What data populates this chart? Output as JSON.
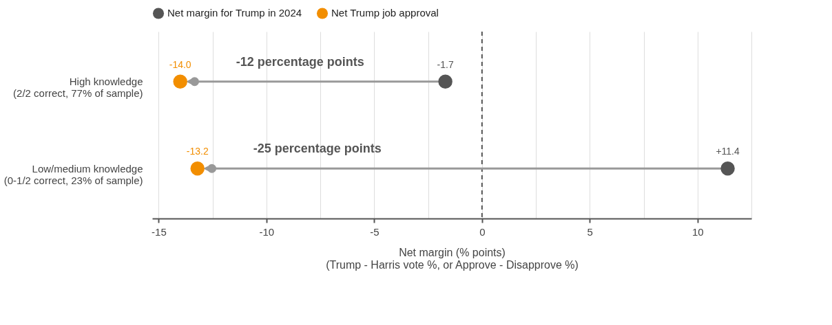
{
  "chart_data": {
    "type": "scatter",
    "categories": [
      "High knowledge\n(2/2 correct, 77% of sample)",
      "Low/medium knowledge\n(0-1/2 correct, 23% of sample)"
    ],
    "series": [
      {
        "name": "Net margin for Trump in 2024",
        "color": "#555555",
        "values": [
          -1.7,
          11.4
        ],
        "value_labels": [
          "-1.7",
          "+11.4"
        ]
      },
      {
        "name": "Net Trump job approval",
        "color": "#f28e00",
        "values": [
          -14.0,
          -13.2
        ],
        "value_labels": [
          "-14.0",
          "-13.2"
        ]
      }
    ],
    "xlabel": "Net margin (% points)\n(Trump - Harris vote %, or Approve - Disapprove %)",
    "xlim": [
      -15.3,
      12.5
    ],
    "xticks": [
      -15,
      {
        "value": -12.5,
        "label": null
      },
      -10,
      {
        "value": -7.5,
        "label": null
      },
      -5,
      {
        "value": -2.5,
        "label": null
      },
      0,
      {
        "value": 2.5,
        "label": null
      },
      5,
      {
        "value": 7.5,
        "label": null
      },
      10,
      {
        "value": 12.5,
        "label": null
      }
    ],
    "ref_lines": [
      {
        "axis": "x",
        "value": 0,
        "label": null,
        "color": "#555555",
        "line_style": "dashed"
      }
    ],
    "annotations": [
      "-12 percentage points",
      "-25 percentage points"
    ],
    "orientation": "horizontal",
    "grid": "x",
    "legend": "top",
    "marker": "circle"
  }
}
